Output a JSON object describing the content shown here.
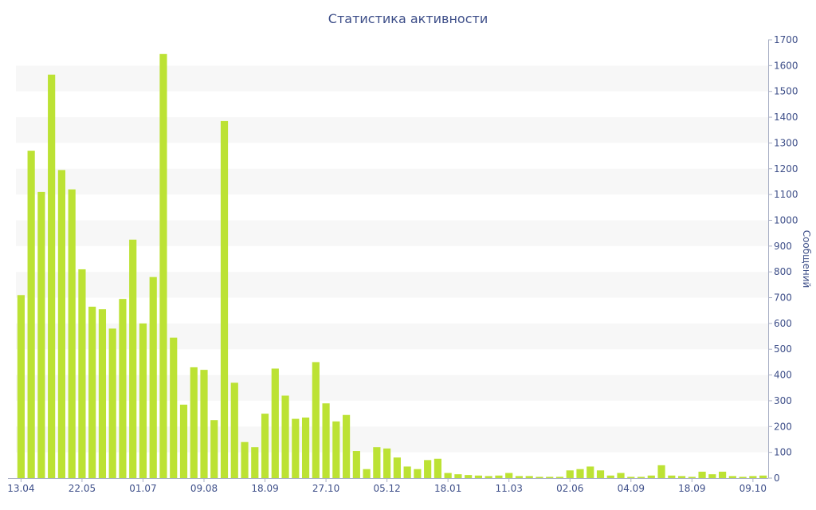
{
  "chart_data": {
    "type": "bar",
    "title": "Статистика активности",
    "xlabel": "",
    "ylabel": "Сообщений",
    "ylim": [
      0,
      1700
    ],
    "yticks": [
      0,
      100,
      200,
      300,
      400,
      500,
      600,
      700,
      800,
      900,
      1000,
      1100,
      1200,
      1300,
      1400,
      1500,
      1600,
      1700
    ],
    "y_axis_position": "right",
    "grid": "alternating horizontal bands",
    "bar_color": "#bce234",
    "band_color": "#f7f7f7",
    "text_color": "#3e4f89",
    "values": [
      710,
      1270,
      1110,
      1565,
      1195,
      1120,
      810,
      665,
      655,
      580,
      695,
      925,
      600,
      780,
      1645,
      545,
      285,
      430,
      420,
      225,
      1385,
      370,
      140,
      120,
      250,
      425,
      320,
      230,
      235,
      450,
      290,
      220,
      245,
      105,
      35,
      120,
      115,
      80,
      45,
      35,
      70,
      75,
      20,
      15,
      12,
      10,
      8,
      10,
      20,
      8,
      8,
      5,
      5,
      5,
      30,
      35,
      45,
      30,
      10,
      20,
      5,
      5,
      10,
      50,
      10,
      8,
      5,
      25,
      15,
      25,
      8,
      5,
      8,
      10
    ],
    "x_tick_labels": [
      {
        "index": 0,
        "label": "13.04"
      },
      {
        "index": 6,
        "label": "22.05"
      },
      {
        "index": 12,
        "label": "01.07"
      },
      {
        "index": 18,
        "label": "09.08"
      },
      {
        "index": 24,
        "label": "18.09"
      },
      {
        "index": 30,
        "label": "27.10"
      },
      {
        "index": 36,
        "label": "05.12"
      },
      {
        "index": 42,
        "label": "18.01"
      },
      {
        "index": 48,
        "label": "11.03"
      },
      {
        "index": 54,
        "label": "02.06"
      },
      {
        "index": 60,
        "label": "04.09"
      },
      {
        "index": 66,
        "label": "18.09"
      },
      {
        "index": 72,
        "label": "09.10"
      }
    ]
  }
}
